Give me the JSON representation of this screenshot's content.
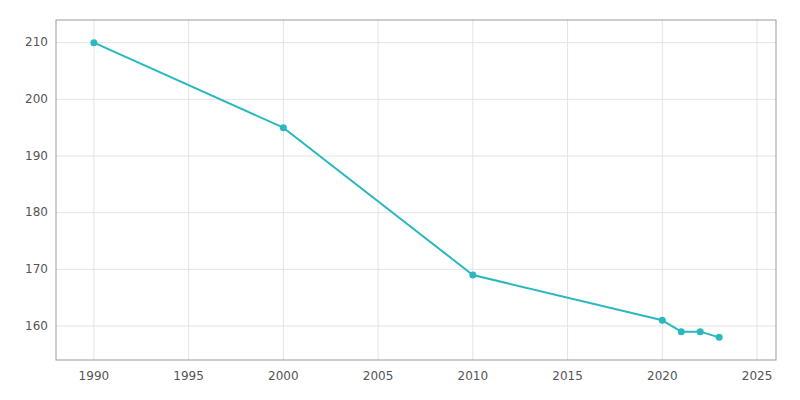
{
  "chart_data": {
    "type": "line",
    "x": [
      1990,
      2000,
      2010,
      2020,
      2021,
      2022,
      2023
    ],
    "values": [
      210,
      195,
      169,
      161,
      159,
      159,
      158
    ],
    "color": "#29b8c0",
    "marker": "circle",
    "xlim": [
      1988,
      2026
    ],
    "ylim": [
      154,
      214
    ],
    "xticks": [
      1990,
      1995,
      2000,
      2005,
      2010,
      2015,
      2020,
      2025
    ],
    "yticks": [
      160,
      170,
      180,
      190,
      200,
      210
    ],
    "grid": true
  }
}
